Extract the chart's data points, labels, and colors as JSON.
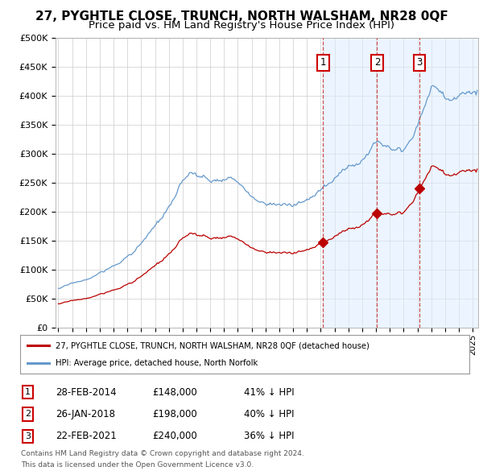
{
  "title": "27, PYGHTLE CLOSE, TRUNCH, NORTH WALSHAM, NR28 0QF",
  "subtitle": "Price paid vs. HM Land Registry's House Price Index (HPI)",
  "ylim": [
    0,
    500000
  ],
  "yticks": [
    0,
    50000,
    100000,
    150000,
    200000,
    250000,
    300000,
    350000,
    400000,
    450000,
    500000
  ],
  "ytick_labels": [
    "£0",
    "£50K",
    "£100K",
    "£150K",
    "£200K",
    "£250K",
    "£300K",
    "£350K",
    "£400K",
    "£450K",
    "£500K"
  ],
  "xlim_start": 1994.8,
  "xlim_end": 2025.4,
  "title_fontsize": 11,
  "subtitle_fontsize": 9.5,
  "background_color": "#ffffff",
  "plot_bg_color": "#ffffff",
  "grid_color": "#cccccc",
  "sale_dates": [
    2014.163,
    2018.08,
    2021.143
  ],
  "sale_prices": [
    148000,
    198000,
    240000
  ],
  "sale_labels": [
    "1",
    "2",
    "3"
  ],
  "sale_date_strs": [
    "28-FEB-2014",
    "26-JAN-2018",
    "22-FEB-2021"
  ],
  "sale_price_strs": [
    "£148,000",
    "£198,000",
    "£240,000"
  ],
  "sale_pct_strs": [
    "41% ↓ HPI",
    "40% ↓ HPI",
    "36% ↓ HPI"
  ],
  "legend_line1": "27, PYGHTLE CLOSE, TRUNCH, NORTH WALSHAM, NR28 0QF (detached house)",
  "legend_line2": "HPI: Average price, detached house, North Norfolk",
  "footer1": "Contains HM Land Registry data © Crown copyright and database right 2024.",
  "footer2": "This data is licensed under the Open Government Licence v3.0.",
  "red_line_color": "#bb0000",
  "blue_line_color": "#6699cc",
  "vline_color": "#cc3333",
  "shaded_color": "#ddeeff"
}
